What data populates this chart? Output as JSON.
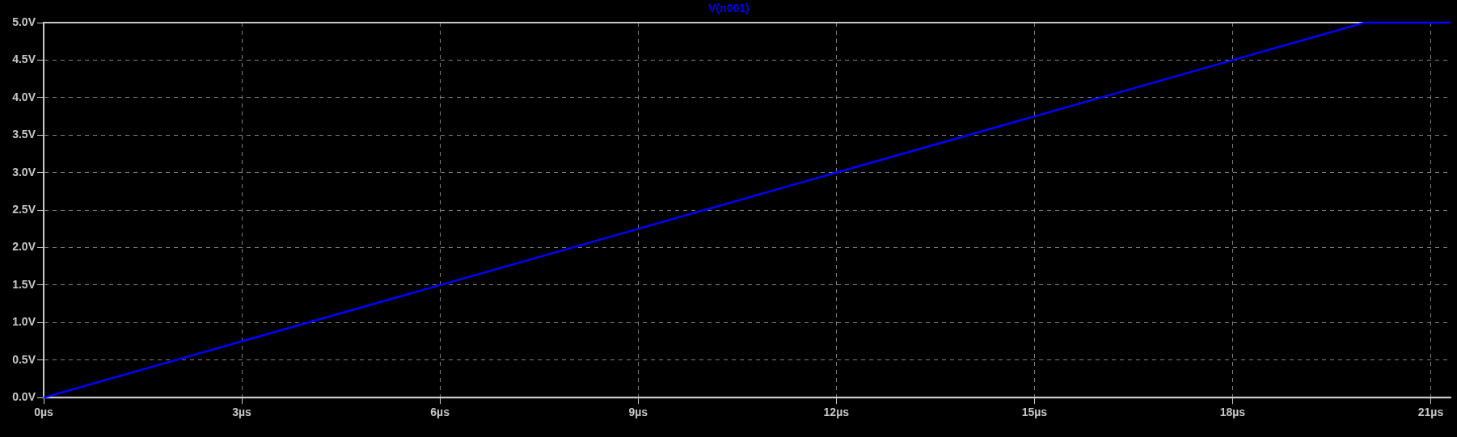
{
  "chart_data": {
    "type": "line",
    "x": [
      0,
      20,
      21.3
    ],
    "series": [
      {
        "name": "V(n001)",
        "color": "#0000ff",
        "values": [
          0,
          5,
          5
        ]
      }
    ],
    "xlim": [
      0,
      21.3
    ],
    "xticks": [
      {
        "value": 0,
        "label": "0µs"
      },
      {
        "value": 3,
        "label": "3µs"
      },
      {
        "value": 6,
        "label": "6µs"
      },
      {
        "value": 9,
        "label": "9µs"
      },
      {
        "value": 12,
        "label": "12µs"
      },
      {
        "value": 15,
        "label": "15µs"
      },
      {
        "value": 18,
        "label": "18µs"
      },
      {
        "value": 21,
        "label": "21µs"
      }
    ],
    "ylim": [
      0,
      5
    ],
    "yticks": [
      {
        "value": 0,
        "label": "0.0V"
      },
      {
        "value": 0.5,
        "label": "0.5V"
      },
      {
        "value": 1,
        "label": "1.0V"
      },
      {
        "value": 1.5,
        "label": "1.5V"
      },
      {
        "value": 2,
        "label": "2.0V"
      },
      {
        "value": 2.5,
        "label": "2.5V"
      },
      {
        "value": 3,
        "label": "3.0V"
      },
      {
        "value": 3.5,
        "label": "3.5V"
      },
      {
        "value": 4,
        "label": "4.0V"
      },
      {
        "value": 4.5,
        "label": "4.5V"
      },
      {
        "value": 5,
        "label": "5.0V"
      }
    ],
    "grid": true,
    "legend": "top",
    "marker": "none",
    "line_style": "solid"
  }
}
